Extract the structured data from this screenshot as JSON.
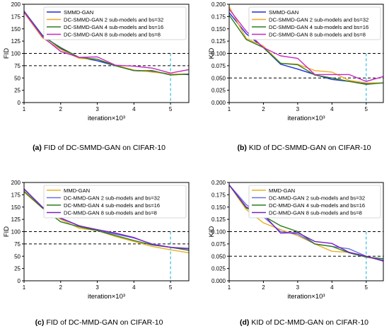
{
  "panels": [
    {
      "tag": "(a)",
      "caption": "FID of DC-SMMD-GAN on CIFAR-10"
    },
    {
      "tag": "(b)",
      "caption": "KID of DC-SMMD-GAN on CIFAR-10"
    },
    {
      "tag": "(c)",
      "caption": "FID of DC-MMD-GAN on CIFAR-10"
    },
    {
      "tag": "(d)",
      "caption": "KID of DC-MMD-GAN on CIFAR-10"
    }
  ],
  "chart_data": [
    {
      "type": "line",
      "xlabel": "iteration×10³",
      "ylabel": "FID",
      "xlim": [
        1,
        5.5
      ],
      "ylim": [
        0,
        200
      ],
      "xticks": [
        "1",
        "2",
        "3",
        "4",
        "5"
      ],
      "yticks": [
        "0",
        "25",
        "50",
        "75",
        "100",
        "125",
        "150",
        "175",
        "200"
      ],
      "legend_position": "top-right",
      "hlines": [
        100,
        75
      ],
      "vline": 5,
      "series": [
        {
          "name": "SMMD-GAN",
          "color": "#1f2fd6",
          "x": [
            1,
            1.5,
            2,
            2.5,
            3,
            3.5,
            4,
            4.5,
            5,
            5.5
          ],
          "y": [
            186,
            137,
            110,
            92,
            85,
            75,
            65,
            63,
            58,
            57
          ]
        },
        {
          "name": "DC-SMMD-GAN 2 sub-models and bs=32",
          "color": "#f5a623",
          "x": [
            1,
            1.5,
            2,
            2.5,
            3,
            3.5,
            4,
            4.5,
            5,
            5.5
          ],
          "y": [
            183,
            132,
            108,
            90,
            88,
            76,
            66,
            62,
            58,
            58
          ]
        },
        {
          "name": "DC-SMMD-GAN 4 sub-models and bs=16",
          "color": "#2e7d1e",
          "x": [
            1,
            1.5,
            2,
            2.5,
            3,
            3.5,
            4,
            4.5,
            5,
            5.5
          ],
          "y": [
            185,
            135,
            112,
            92,
            88,
            75,
            65,
            65,
            56,
            58
          ]
        },
        {
          "name": "DC-SMMD-GAN 8 sub-models and bs=8",
          "color": "#c428c4",
          "x": [
            1,
            1.5,
            2,
            2.5,
            3,
            3.5,
            4,
            4.5,
            5,
            5.5
          ],
          "y": [
            184,
            134,
            104,
            92,
            93,
            76,
            74,
            70,
            60,
            67
          ]
        }
      ]
    },
    {
      "type": "line",
      "xlabel": "iteration×10³",
      "ylabel": "KID",
      "xlim": [
        1,
        5.5
      ],
      "ylim": [
        0,
        0.2
      ],
      "xticks": [
        "1",
        "2",
        "3",
        "4",
        "5"
      ],
      "yticks": [
        "0.000",
        "0.025",
        "0.050",
        "0.075",
        "0.100",
        "0.125",
        "0.150",
        "0.175",
        "0.200"
      ],
      "legend_position": "top-right",
      "hlines": [
        0.1,
        0.05
      ],
      "vline": 5,
      "series": [
        {
          "name": "SMMD-GAN",
          "color": "#1f2fd6",
          "x": [
            1,
            1.5,
            2,
            2.5,
            3,
            3.5,
            4,
            4.5,
            5,
            5.5
          ],
          "y": [
            0.183,
            0.14,
            0.112,
            0.078,
            0.068,
            0.057,
            0.047,
            0.043,
            0.038,
            0.04
          ]
        },
        {
          "name": "DC-SMMD-GAN 2 sub-models and bs=32",
          "color": "#f5a623",
          "x": [
            1,
            1.5,
            2,
            2.5,
            3,
            3.5,
            4,
            4.5,
            5,
            5.5
          ],
          "y": [
            0.195,
            0.13,
            0.115,
            0.08,
            0.078,
            0.065,
            0.062,
            0.045,
            0.04,
            0.04
          ]
        },
        {
          "name": "DC-SMMD-GAN 4 sub-models and bs=16",
          "color": "#2e7d1e",
          "x": [
            1,
            1.5,
            2,
            2.5,
            3,
            3.5,
            4,
            4.5,
            5,
            5.5
          ],
          "y": [
            0.178,
            0.128,
            0.112,
            0.08,
            0.077,
            0.056,
            0.05,
            0.043,
            0.037,
            0.04
          ]
        },
        {
          "name": "DC-SMMD-GAN 8 sub-models and bs=8",
          "color": "#c428c4",
          "x": [
            1,
            1.5,
            2,
            2.5,
            3,
            3.5,
            4,
            4.5,
            5,
            5.5
          ],
          "y": [
            0.19,
            0.145,
            0.112,
            0.095,
            0.09,
            0.057,
            0.057,
            0.057,
            0.043,
            0.053
          ]
        }
      ]
    },
    {
      "type": "line",
      "xlabel": "iteration×10³",
      "ylabel": "FID",
      "xlim": [
        1,
        5.5
      ],
      "ylim": [
        0,
        200
      ],
      "xticks": [
        "1",
        "2",
        "3",
        "4",
        "5"
      ],
      "yticks": [
        "0",
        "25",
        "50",
        "75",
        "100",
        "125",
        "150",
        "175",
        "200"
      ],
      "legend_position": "top-right",
      "hlines": [
        100,
        75
      ],
      "vline": 5,
      "series": [
        {
          "name": "MMD-GAN",
          "color": "#e6b020",
          "x": [
            1,
            1.5,
            2,
            2.5,
            3,
            3.5,
            4,
            4.5,
            5,
            5.5
          ],
          "y": [
            180,
            148,
            125,
            107,
            102,
            90,
            80,
            70,
            63,
            57
          ]
        },
        {
          "name": "DC-MMD-GAN 2 sub-models and bs=32",
          "color": "#6a6fe0",
          "x": [
            1,
            1.5,
            2,
            2.5,
            3,
            3.5,
            4,
            4.5,
            5,
            5.5
          ],
          "y": [
            186,
            150,
            128,
            112,
            102,
            95,
            87,
            75,
            68,
            66
          ]
        },
        {
          "name": "DC-MMD-GAN 4 sub-models and bs=16",
          "color": "#2e7d1e",
          "x": [
            1,
            1.5,
            2,
            2.5,
            3,
            3.5,
            4,
            4.5,
            5,
            5.5
          ],
          "y": [
            182,
            148,
            120,
            110,
            102,
            92,
            82,
            73,
            68,
            62
          ]
        },
        {
          "name": "DC-MMD-GAN 8 sub-models and bs=8",
          "color": "#7a1fc4",
          "x": [
            1,
            1.5,
            2,
            2.5,
            3,
            3.5,
            4,
            4.5,
            5,
            5.5
          ],
          "y": [
            187,
            150,
            127,
            112,
            104,
            97,
            88,
            74,
            68,
            65
          ]
        }
      ]
    },
    {
      "type": "line",
      "xlabel": "iteration×10³",
      "ylabel": "KID",
      "xlim": [
        1,
        5.5
      ],
      "ylim": [
        0,
        0.2
      ],
      "xticks": [
        "1",
        "2",
        "3",
        "4",
        "5"
      ],
      "yticks": [
        "0.000",
        "0.025",
        "0.050",
        "0.075",
        "0.100",
        "0.125",
        "0.150",
        "0.175",
        "0.200"
      ],
      "legend_position": "top-right",
      "hlines": [
        0.1,
        0.05
      ],
      "vline": 5,
      "series": [
        {
          "name": "MMD-GAN",
          "color": "#e6b020",
          "x": [
            1,
            1.5,
            2,
            2.5,
            3,
            3.5,
            4,
            4.5,
            5,
            5.5
          ],
          "y": [
            0.195,
            0.145,
            0.118,
            0.104,
            0.092,
            0.075,
            0.06,
            0.058,
            0.048,
            0.042
          ]
        },
        {
          "name": "DC-MMD-GAN 2 sub-models and bs=32",
          "color": "#6a6fe0",
          "x": [
            1,
            1.5,
            2,
            2.5,
            3,
            3.5,
            4,
            4.5,
            5,
            5.5
          ],
          "y": [
            0.195,
            0.155,
            0.13,
            0.1,
            0.095,
            0.075,
            0.07,
            0.065,
            0.05,
            0.042
          ]
        },
        {
          "name": "DC-MMD-GAN 4 sub-models and bs=16",
          "color": "#2e7d1e",
          "x": [
            1,
            1.5,
            2,
            2.5,
            3,
            3.5,
            4,
            4.5,
            5,
            5.5
          ],
          "y": [
            0.195,
            0.148,
            0.132,
            0.112,
            0.1,
            0.075,
            0.07,
            0.057,
            0.048,
            0.045
          ]
        },
        {
          "name": "DC-MMD-GAN 8 sub-models and bs=8",
          "color": "#7a1fc4",
          "x": [
            1,
            1.5,
            2,
            2.5,
            3,
            3.5,
            4,
            4.5,
            5,
            5.5
          ],
          "y": [
            0.195,
            0.15,
            0.135,
            0.097,
            0.098,
            0.08,
            0.076,
            0.058,
            0.05,
            0.04
          ]
        }
      ]
    }
  ]
}
